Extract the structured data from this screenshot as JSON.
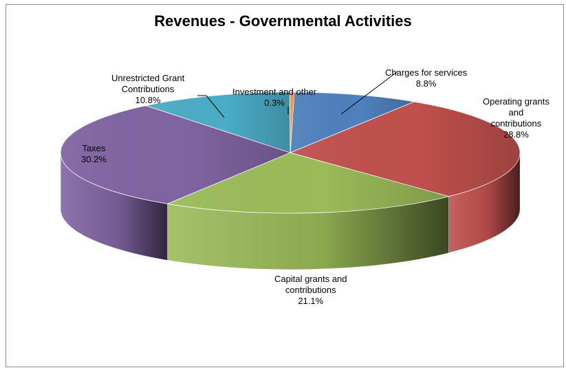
{
  "chart_data": {
    "type": "pie",
    "style": "3d-pie",
    "title": "Revenues - Governmental Activities",
    "legend": "none",
    "slices": [
      {
        "label_lines": [
          "Charges for services"
        ],
        "value_text": "8.8%",
        "value": 8.8,
        "color": "#4f81bd"
      },
      {
        "label_lines": [
          "Operating grants",
          "and",
          "contributions"
        ],
        "value_text": "28.8%",
        "value": 28.8,
        "color": "#c0504d"
      },
      {
        "label_lines": [
          "Capital grants and",
          "contributions"
        ],
        "value_text": "21.1%",
        "value": 21.1,
        "color": "#9bbb59"
      },
      {
        "label_lines": [
          "Taxes"
        ],
        "value_text": "30.2%",
        "value": 30.2,
        "color": "#8064a2"
      },
      {
        "label_lines": [
          "Unrestricted Grant",
          "Contributions"
        ],
        "value_text": "10.8%",
        "value": 10.8,
        "color": "#4bacc6"
      },
      {
        "label_lines": [
          "Investment and other"
        ],
        "value_text": "0.3%",
        "value": 0.3,
        "color": "#f79646"
      }
    ]
  }
}
